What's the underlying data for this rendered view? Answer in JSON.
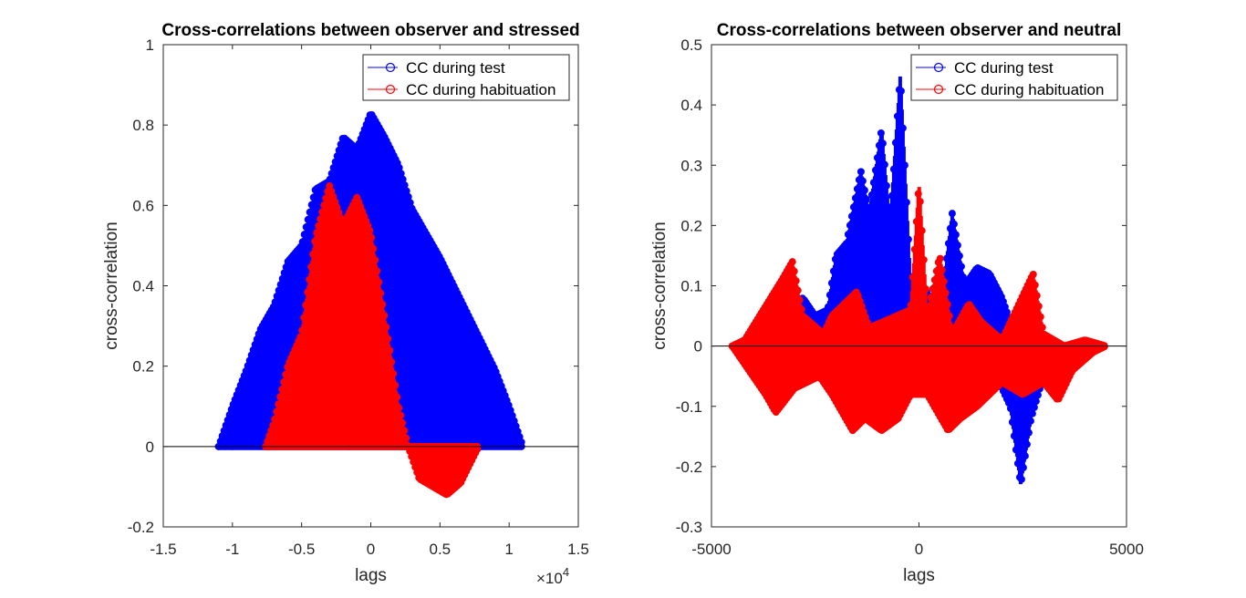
{
  "chart_data": [
    {
      "type": "stem",
      "title": "Cross-correlations between observer and stressed",
      "xlabel": "lags",
      "ylabel": "cross-correlation",
      "x_exponent_label": "×10",
      "x_exponent_power": "4",
      "x_scale": 10000,
      "xlim": [
        -15000,
        15000
      ],
      "ylim": [
        -0.2,
        1
      ],
      "xticks": [
        -15000,
        -10000,
        -5000,
        0,
        5000,
        10000,
        15000
      ],
      "xtick_labels": [
        "-1.5",
        "-1",
        "-0.5",
        "0",
        "0.5",
        "1",
        "1.5"
      ],
      "yticks": [
        -0.2,
        0,
        0.2,
        0.4,
        0.6,
        0.8,
        1
      ],
      "ytick_labels": [
        "-0.2",
        "0",
        "0.2",
        "0.4",
        "0.6",
        "0.8",
        "1"
      ],
      "legend_position": "top-right",
      "grid": false,
      "series": [
        {
          "name": "CC during test",
          "color": "#0000ff",
          "envelope_upper": [
            [
              -11000,
              0
            ],
            [
              -10000,
              0.1
            ],
            [
              -9000,
              0.19
            ],
            [
              -8000,
              0.29
            ],
            [
              -7000,
              0.35
            ],
            [
              -6000,
              0.46
            ],
            [
              -5000,
              0.5
            ],
            [
              -4000,
              0.64
            ],
            [
              -3000,
              0.66
            ],
            [
              -2000,
              0.77
            ],
            [
              -1000,
              0.74
            ],
            [
              0,
              0.83
            ],
            [
              1000,
              0.77
            ],
            [
              2000,
              0.7
            ],
            [
              3000,
              0.59
            ],
            [
              4000,
              0.53
            ],
            [
              5000,
              0.47
            ],
            [
              6000,
              0.4
            ],
            [
              7000,
              0.33
            ],
            [
              8000,
              0.26
            ],
            [
              9000,
              0.19
            ],
            [
              10000,
              0.1
            ],
            [
              11000,
              0
            ]
          ],
          "envelope_lower": [
            [
              -11000,
              0
            ],
            [
              11000,
              0
            ]
          ]
        },
        {
          "name": "CC during habituation",
          "color": "#ff0000",
          "envelope_upper": [
            [
              -7600,
              0
            ],
            [
              -7000,
              0.06
            ],
            [
              -6000,
              0.2
            ],
            [
              -5000,
              0.28
            ],
            [
              -4000,
              0.52
            ],
            [
              -3000,
              0.65
            ],
            [
              -2500,
              0.6
            ],
            [
              -2000,
              0.55
            ],
            [
              -1000,
              0.62
            ],
            [
              0,
              0.53
            ],
            [
              1000,
              0.32
            ],
            [
              2000,
              0.1
            ],
            [
              2700,
              0
            ],
            [
              7800,
              0
            ]
          ],
          "envelope_lower": [
            [
              -7600,
              0
            ],
            [
              2700,
              0
            ],
            [
              3500,
              -0.08
            ],
            [
              4500,
              -0.1
            ],
            [
              5500,
              -0.12
            ],
            [
              6500,
              -0.09
            ],
            [
              7500,
              -0.02
            ],
            [
              7800,
              0
            ]
          ]
        }
      ]
    },
    {
      "type": "stem",
      "title": "Cross-correlations between observer and neutral",
      "xlabel": "lags",
      "ylabel": "cross-correlation",
      "xlim": [
        -5000,
        5000
      ],
      "ylim": [
        -0.3,
        0.5
      ],
      "xticks": [
        -5000,
        0,
        5000
      ],
      "xtick_labels": [
        "-5000",
        "0",
        "5000"
      ],
      "yticks": [
        -0.3,
        -0.2,
        -0.1,
        0,
        0.1,
        0.2,
        0.3,
        0.4,
        0.5
      ],
      "ytick_labels": [
        "-0.3",
        "-0.2",
        "-0.1",
        "0",
        "0.1",
        "0.2",
        "0.3",
        "0.4",
        "0.5"
      ],
      "legend_position": "top-right",
      "grid": false,
      "series": [
        {
          "name": "CC during test",
          "color": "#0000ff",
          "envelope_upper": [
            [
              -3200,
              0
            ],
            [
              -2800,
              0.08
            ],
            [
              -2500,
              0.05
            ],
            [
              -2200,
              0.06
            ],
            [
              -2000,
              0.15
            ],
            [
              -1750,
              0.17
            ],
            [
              -1400,
              0.29
            ],
            [
              -1200,
              0.22
            ],
            [
              -900,
              0.36
            ],
            [
              -700,
              0.2
            ],
            [
              -450,
              0.45
            ],
            [
              -200,
              0.1
            ],
            [
              100,
              0.1
            ],
            [
              500,
              0.05
            ],
            [
              800,
              0.22
            ],
            [
              1100,
              0.1
            ],
            [
              1400,
              0.13
            ],
            [
              1700,
              0.12
            ],
            [
              2000,
              0.08
            ],
            [
              2300,
              0.02
            ],
            [
              2600,
              0.01
            ],
            [
              3000,
              0
            ]
          ],
          "envelope_lower": [
            [
              -3200,
              0
            ],
            [
              -200,
              0
            ],
            [
              200,
              -0.07
            ],
            [
              600,
              -0.05
            ],
            [
              1000,
              -0.06
            ],
            [
              1400,
              -0.02
            ],
            [
              1800,
              -0.04
            ],
            [
              2200,
              -0.1
            ],
            [
              2450,
              -0.23
            ],
            [
              2700,
              -0.12
            ],
            [
              3000,
              -0.05
            ],
            [
              3200,
              0
            ]
          ]
        },
        {
          "name": "CC during habituation",
          "color": "#ff0000",
          "envelope_upper": [
            [
              -4500,
              0
            ],
            [
              -4200,
              0.01
            ],
            [
              -3300,
              0.11
            ],
            [
              -3050,
              0.14
            ],
            [
              -2800,
              0.05
            ],
            [
              -2300,
              0.02
            ],
            [
              -2100,
              0.05
            ],
            [
              -1500,
              0.09
            ],
            [
              -1200,
              0.03
            ],
            [
              -200,
              0.06
            ],
            [
              0,
              0.27
            ],
            [
              200,
              0.05
            ],
            [
              500,
              0.15
            ],
            [
              800,
              0.02
            ],
            [
              1200,
              0.07
            ],
            [
              1500,
              0.04
            ],
            [
              2000,
              0.01
            ],
            [
              2750,
              0.12
            ],
            [
              3000,
              0.02
            ],
            [
              3500,
              0
            ],
            [
              4000,
              0.01
            ],
            [
              4500,
              0
            ]
          ],
          "envelope_lower": [
            [
              -4500,
              0
            ],
            [
              -4200,
              -0.03
            ],
            [
              -3700,
              -0.08
            ],
            [
              -3450,
              -0.11
            ],
            [
              -3000,
              -0.07
            ],
            [
              -2400,
              -0.05
            ],
            [
              -2100,
              -0.08
            ],
            [
              -1600,
              -0.14
            ],
            [
              -1300,
              -0.12
            ],
            [
              -900,
              -0.14
            ],
            [
              -500,
              -0.12
            ],
            [
              -200,
              -0.08
            ],
            [
              200,
              -0.08
            ],
            [
              700,
              -0.14
            ],
            [
              1000,
              -0.12
            ],
            [
              1400,
              -0.1
            ],
            [
              2000,
              -0.06
            ],
            [
              2500,
              -0.08
            ],
            [
              3000,
              -0.06
            ],
            [
              3350,
              -0.09
            ],
            [
              3700,
              -0.04
            ],
            [
              4200,
              -0.01
            ],
            [
              4500,
              0
            ]
          ]
        }
      ]
    }
  ]
}
